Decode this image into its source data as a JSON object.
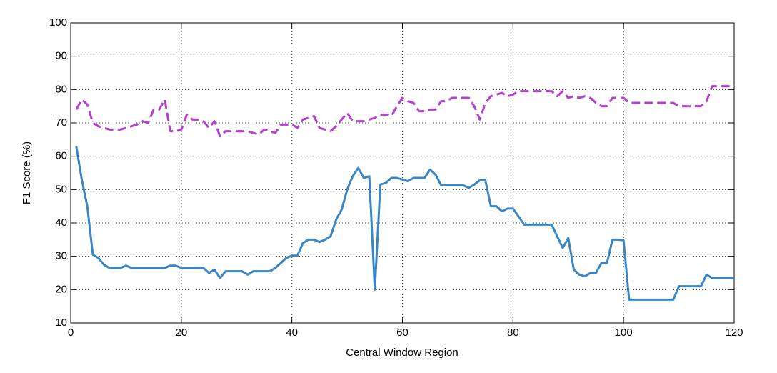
{
  "chart_data": {
    "type": "line",
    "x_label": "Central Window Region",
    "y_label": "F1 Score (%)",
    "xlim": [
      0,
      120
    ],
    "ylim": [
      10,
      100
    ],
    "xticks": [
      0,
      20,
      40,
      60,
      80,
      100,
      120
    ],
    "yticks": [
      10,
      20,
      30,
      40,
      50,
      60,
      70,
      80,
      90,
      100
    ],
    "grid": true,
    "x": [
      1,
      2,
      3,
      4,
      5,
      6,
      7,
      8,
      9,
      10,
      11,
      12,
      13,
      14,
      15,
      16,
      17,
      18,
      19,
      20,
      21,
      22,
      23,
      24,
      25,
      26,
      27,
      28,
      29,
      30,
      31,
      32,
      33,
      34,
      35,
      36,
      37,
      38,
      39,
      40,
      41,
      42,
      43,
      44,
      45,
      46,
      47,
      48,
      49,
      50,
      51,
      52,
      53,
      54,
      55,
      56,
      57,
      58,
      59,
      60,
      61,
      62,
      63,
      64,
      65,
      66,
      67,
      68,
      69,
      70,
      71,
      72,
      73,
      74,
      75,
      76,
      77,
      78,
      79,
      80,
      81,
      82,
      83,
      84,
      85,
      86,
      87,
      88,
      89,
      90,
      91,
      92,
      93,
      94,
      95,
      96,
      97,
      98,
      99,
      100,
      101,
      102,
      103,
      104,
      105,
      106,
      107,
      108,
      109,
      110,
      111,
      112,
      113,
      114,
      115,
      116,
      117,
      118,
      119,
      120
    ],
    "series": [
      {
        "color": "#3a86c4",
        "line_style": "solid",
        "values": [
          63,
          53,
          45,
          30.5,
          29.5,
          27.5,
          26.5,
          26.5,
          26.5,
          27.2,
          26.5,
          26.5,
          26.5,
          26.5,
          26.5,
          26.5,
          26.5,
          27.2,
          27.2,
          26.5,
          26.5,
          26.5,
          26.5,
          26.5,
          25,
          26,
          23.5,
          25.5,
          25.5,
          25.5,
          25.5,
          24.5,
          25.5,
          25.5,
          25.5,
          25.5,
          26.5,
          28,
          29.5,
          30.2,
          30.2,
          34,
          35,
          35,
          34.3,
          35,
          36,
          41,
          44,
          50,
          54,
          56.5,
          53.5,
          54,
          20,
          51.5,
          52,
          53.5,
          53.5,
          53,
          52.5,
          53.5,
          53.5,
          53.5,
          56,
          54.5,
          51.3,
          51.3,
          51.3,
          51.3,
          51.3,
          50.5,
          51.5,
          52.8,
          52.8,
          45,
          45,
          43.5,
          44.3,
          44.3,
          42,
          39.5,
          39.5,
          39.5,
          39.5,
          39.5,
          39.5,
          36,
          32.5,
          35.5,
          26,
          24.5,
          24,
          25,
          25,
          28,
          28,
          35,
          35,
          34.8,
          17,
          17,
          17,
          17,
          17,
          17,
          17,
          17,
          17,
          21,
          21,
          21,
          21,
          21,
          24.5,
          23.5,
          23.5,
          23.5,
          23.5,
          23.5
        ]
      },
      {
        "color": "#b43fd0",
        "line_style": "dashed",
        "values": [
          74,
          77,
          75.5,
          70,
          69,
          68.5,
          68,
          68,
          68,
          68.5,
          69,
          69.5,
          70.5,
          70,
          74,
          74,
          77,
          67.5,
          67.5,
          68,
          72.5,
          71,
          71,
          70.5,
          68.5,
          70.5,
          66,
          67.5,
          67.5,
          67.5,
          67.5,
          67.5,
          67,
          66.5,
          68,
          67.5,
          67,
          69.5,
          69.5,
          69.5,
          68.5,
          71,
          71.5,
          72,
          68.5,
          68,
          67.5,
          69,
          71,
          73,
          70.5,
          70.5,
          70.5,
          71,
          71.5,
          72.5,
          72.5,
          72,
          75,
          77.5,
          76.5,
          76,
          73.5,
          73.5,
          74,
          74,
          76.5,
          76.5,
          77.5,
          77.5,
          77.5,
          77.5,
          75,
          71,
          76,
          78,
          78.5,
          79,
          78,
          78.5,
          79.5,
          79.5,
          79.5,
          79.5,
          79.5,
          79.5,
          79.5,
          78,
          79.5,
          77.5,
          78,
          77.5,
          78,
          77.5,
          76,
          75,
          75,
          77.5,
          77.5,
          77.5,
          76,
          76,
          76,
          76,
          76,
          76,
          76,
          76,
          76,
          75,
          75,
          75,
          75,
          75,
          76.5,
          81,
          81,
          81,
          81,
          81
        ]
      }
    ]
  }
}
